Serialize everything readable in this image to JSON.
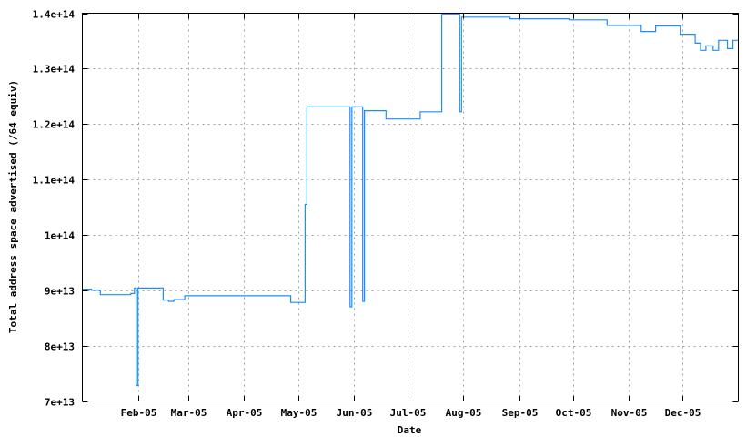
{
  "chart_data": {
    "type": "line",
    "style": "steps",
    "title": "",
    "xlabel": "Date",
    "ylabel": "Total address space advertised (/64 equiv)",
    "xlim": [
      "2005-01-01",
      "2006-01-01"
    ],
    "ylim": [
      70000000000000,
      140000000000000
    ],
    "grid": true,
    "line_color": "#1e8cff",
    "x_ticks": [
      {
        "date": "2005-02-01",
        "label": "Feb-05"
      },
      {
        "date": "2005-03-01",
        "label": "Mar-05"
      },
      {
        "date": "2005-04-01",
        "label": "Apr-05"
      },
      {
        "date": "2005-05-01",
        "label": "May-05"
      },
      {
        "date": "2005-06-01",
        "label": "Jun-05"
      },
      {
        "date": "2005-07-01",
        "label": "Jul-05"
      },
      {
        "date": "2005-08-01",
        "label": "Aug-05"
      },
      {
        "date": "2005-09-01",
        "label": "Sep-05"
      },
      {
        "date": "2005-10-01",
        "label": "Oct-05"
      },
      {
        "date": "2005-11-01",
        "label": "Nov-05"
      },
      {
        "date": "2005-12-01",
        "label": "Dec-05"
      }
    ],
    "y_ticks": [
      {
        "value": 70000000000000,
        "label": "7e+13"
      },
      {
        "value": 80000000000000,
        "label": "8e+13"
      },
      {
        "value": 90000000000000,
        "label": "9e+13"
      },
      {
        "value": 100000000000000,
        "label": "1e+14"
      },
      {
        "value": 110000000000000,
        "label": "1.1e+14"
      },
      {
        "value": 120000000000000,
        "label": "1.2e+14"
      },
      {
        "value": 130000000000000,
        "label": "1.3e+14"
      },
      {
        "value": 140000000000000,
        "label": "1.4e+14"
      }
    ],
    "points": [
      [
        "2005-01-01",
        90200000000000.0
      ],
      [
        "2005-01-06",
        90000000000000.0
      ],
      [
        "2005-01-11",
        89200000000000.0
      ],
      [
        "2005-01-28",
        89400000000000.0
      ],
      [
        "2005-01-30",
        90400000000000.0
      ],
      [
        "2005-01-31",
        72800000000000.0
      ],
      [
        "2005-02-01",
        90400000000000.0
      ],
      [
        "2005-02-15",
        88200000000000.0
      ],
      [
        "2005-02-18",
        88000000000000.0
      ],
      [
        "2005-02-21",
        88300000000000.0
      ],
      [
        "2005-02-27",
        89000000000000.0
      ],
      [
        "2005-04-27",
        87800000000000.0
      ],
      [
        "2005-05-05",
        105500000000000.0
      ],
      [
        "2005-05-06",
        123100000000000.0
      ],
      [
        "2005-05-30",
        87000000000000.0
      ],
      [
        "2005-05-31",
        123100000000000.0
      ],
      [
        "2005-06-06",
        88000000000000.0
      ],
      [
        "2005-06-07",
        122400000000000.0
      ],
      [
        "2005-06-19",
        120900000000000.0
      ],
      [
        "2005-07-08",
        122200000000000.0
      ],
      [
        "2005-07-20",
        139800000000000.0
      ],
      [
        "2005-07-30",
        122200000000000.0
      ],
      [
        "2005-07-31",
        139300000000000.0
      ],
      [
        "2005-08-27",
        139000000000000.0
      ],
      [
        "2005-09-29",
        138800000000000.0
      ],
      [
        "2005-10-20",
        137800000000000.0
      ],
      [
        "2005-11-08",
        136700000000000.0
      ],
      [
        "2005-11-16",
        137700000000000.0
      ],
      [
        "2005-11-30",
        136200000000000.0
      ],
      [
        "2005-12-08",
        134600000000000.0
      ],
      [
        "2005-12-11",
        133300000000000.0
      ],
      [
        "2005-12-14",
        134100000000000.0
      ],
      [
        "2005-12-18",
        133300000000000.0
      ],
      [
        "2005-12-21",
        135100000000000.0
      ],
      [
        "2005-12-26",
        133600000000000.0
      ],
      [
        "2005-12-29",
        135100000000000.0
      ],
      [
        "2005-12-31",
        135100000000000.0
      ]
    ]
  }
}
